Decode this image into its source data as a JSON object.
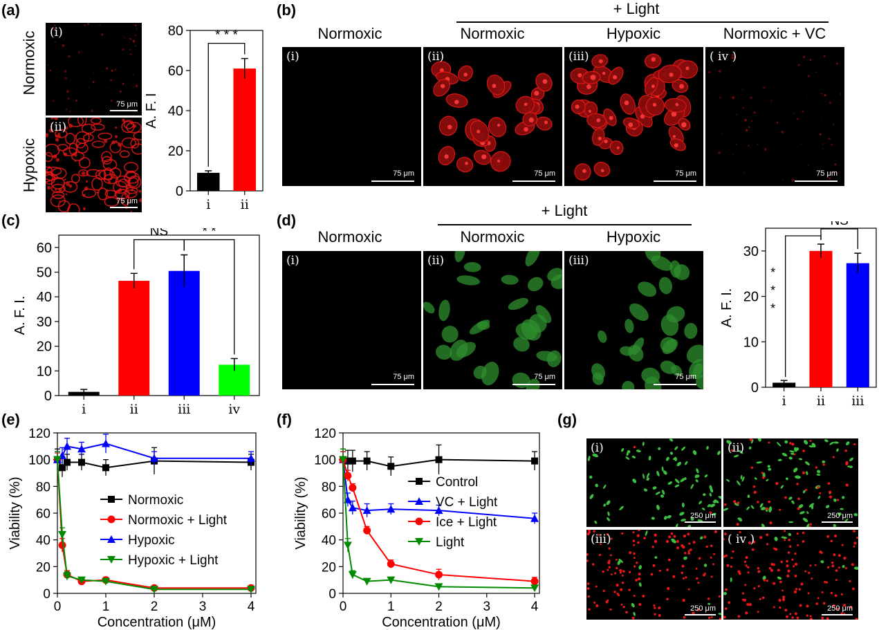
{
  "panels": {
    "a": "(a)",
    "b": "(b)",
    "c": "(c)",
    "d": "(d)",
    "e": "(e)",
    "f": "(f)",
    "g": "(g)"
  },
  "labels": {
    "normoxic": "Normoxic",
    "hypoxic": "Hypoxic",
    "normoxic_vc": "Normoxic + VC",
    "plus_light": "+ Light",
    "scale75": "75 μm",
    "scale250": "250 μm"
  },
  "roman": {
    "i": "(i)",
    "ii": "(ii)",
    "iii": "(iii)",
    "iv": "( iv )"
  },
  "colors": {
    "black": "#000000",
    "red": "#ff0000",
    "blue": "#0000ff",
    "green": "#00ff00",
    "green_line": "#008a00",
    "cell_red": "#e81818",
    "cell_green": "#3fbf3f"
  },
  "chart_data": [
    {
      "id": "a",
      "type": "bar",
      "categories": [
        "i",
        "ii"
      ],
      "values": [
        9,
        61
      ],
      "errors": [
        1,
        5
      ],
      "ylabel": "A. F. I",
      "ylim": [
        0,
        80
      ],
      "yticks": [
        0,
        20,
        40,
        60,
        80
      ],
      "bar_colors": [
        "#000000",
        "#ff0000"
      ],
      "significance": [
        {
          "from": 0,
          "to": 1,
          "label": "* * *"
        }
      ]
    },
    {
      "id": "c",
      "type": "bar",
      "categories": [
        "i",
        "ii",
        "iii",
        "iv"
      ],
      "values": [
        1.5,
        46.5,
        50.5,
        12.5
      ],
      "errors": [
        1,
        3,
        6.5,
        2.5
      ],
      "ylabel": "A. F. I.",
      "ylim": [
        0,
        65
      ],
      "yticks": [
        0,
        10,
        20,
        30,
        40,
        50,
        60
      ],
      "bar_colors": [
        "#000000",
        "#ff0000",
        "#0000ff",
        "#00ff00"
      ],
      "significance": [
        {
          "from": 1,
          "to": 2,
          "label": "NS"
        },
        {
          "from": 2,
          "to": 3,
          "label": "* *"
        }
      ]
    },
    {
      "id": "d",
      "type": "bar",
      "categories": [
        "i",
        "ii",
        "iii"
      ],
      "values": [
        1,
        30,
        27.3
      ],
      "errors": [
        0.5,
        1.5,
        2.2
      ],
      "ylabel": "A. F. I.",
      "ylim": [
        0,
        35
      ],
      "yticks": [
        0,
        10,
        20,
        30
      ],
      "bar_colors": [
        "#000000",
        "#ff0000",
        "#0000ff"
      ],
      "significance": [
        {
          "from": 1,
          "to": 2,
          "label": "NS"
        },
        {
          "from": 0,
          "to": 1,
          "label": "* * *",
          "vertical": true
        }
      ]
    },
    {
      "id": "e",
      "type": "line",
      "x": [
        0,
        0.1,
        0.2,
        0.5,
        1,
        2,
        4
      ],
      "xlabel": "Concentration (μM)",
      "ylabel": "Viability (%)",
      "xlim": [
        0,
        4.1
      ],
      "ylim": [
        0,
        120
      ],
      "xticks": [
        0,
        1,
        2,
        3,
        4
      ],
      "yticks": [
        0,
        20,
        40,
        60,
        80,
        100,
        120
      ],
      "series": [
        {
          "name": "Normoxic",
          "color": "#000000",
          "marker": "square",
          "values": [
            100,
            94,
            98,
            98,
            94,
            99,
            98
          ],
          "errors": [
            8,
            7,
            6,
            6,
            6,
            10,
            6
          ]
        },
        {
          "name": "Normoxic + Light",
          "color": "#ff0000",
          "marker": "circle",
          "values": [
            100,
            36,
            14,
            9,
            10,
            4,
            4
          ],
          "errors": [
            5,
            5,
            3,
            2,
            2,
            1,
            1
          ]
        },
        {
          "name": "Hypoxic",
          "color": "#0000ff",
          "marker": "triangle",
          "values": [
            100,
            103,
            110,
            108,
            112,
            101,
            101
          ],
          "errors": [
            6,
            6,
            6,
            5,
            7,
            5,
            5
          ]
        },
        {
          "name": "Hypoxic + Light",
          "color": "#008a00",
          "marker": "triangle-down",
          "values": [
            100,
            44,
            13,
            10,
            9,
            3,
            3
          ],
          "errors": [
            6,
            5,
            3,
            2,
            2,
            1,
            1
          ]
        }
      ]
    },
    {
      "id": "f",
      "type": "line",
      "x": [
        0,
        0.1,
        0.2,
        0.5,
        1,
        2,
        4
      ],
      "xlabel": "Concentration (μM)",
      "ylabel": "Viability (%)",
      "xlim": [
        0,
        4.1
      ],
      "ylim": [
        0,
        120
      ],
      "xticks": [
        0,
        1,
        2,
        3,
        4
      ],
      "yticks": [
        0,
        20,
        40,
        60,
        80,
        100,
        120
      ],
      "series": [
        {
          "name": "Control",
          "color": "#000000",
          "marker": "square",
          "values": [
            100,
            99,
            99,
            99,
            95,
            100,
            99
          ],
          "errors": [
            8,
            8,
            8,
            7,
            7,
            11,
            7
          ]
        },
        {
          "name": "VC + Light",
          "color": "#0000ff",
          "marker": "triangle",
          "values": [
            100,
            70,
            64,
            62,
            63,
            62,
            56
          ],
          "errors": [
            6,
            5,
            5,
            5,
            4,
            4,
            4
          ]
        },
        {
          "name": "Ice + Light",
          "color": "#ff0000",
          "marker": "circle",
          "values": [
            100,
            88,
            79,
            47,
            22,
            14,
            9
          ],
          "errors": [
            6,
            4,
            3,
            3,
            3,
            4,
            3
          ]
        },
        {
          "name": "Light",
          "color": "#008a00",
          "marker": "triangle-down",
          "values": [
            100,
            36,
            14,
            9,
            10,
            5,
            4
          ],
          "errors": [
            8,
            5,
            3,
            2,
            2,
            1,
            1
          ]
        }
      ]
    }
  ]
}
